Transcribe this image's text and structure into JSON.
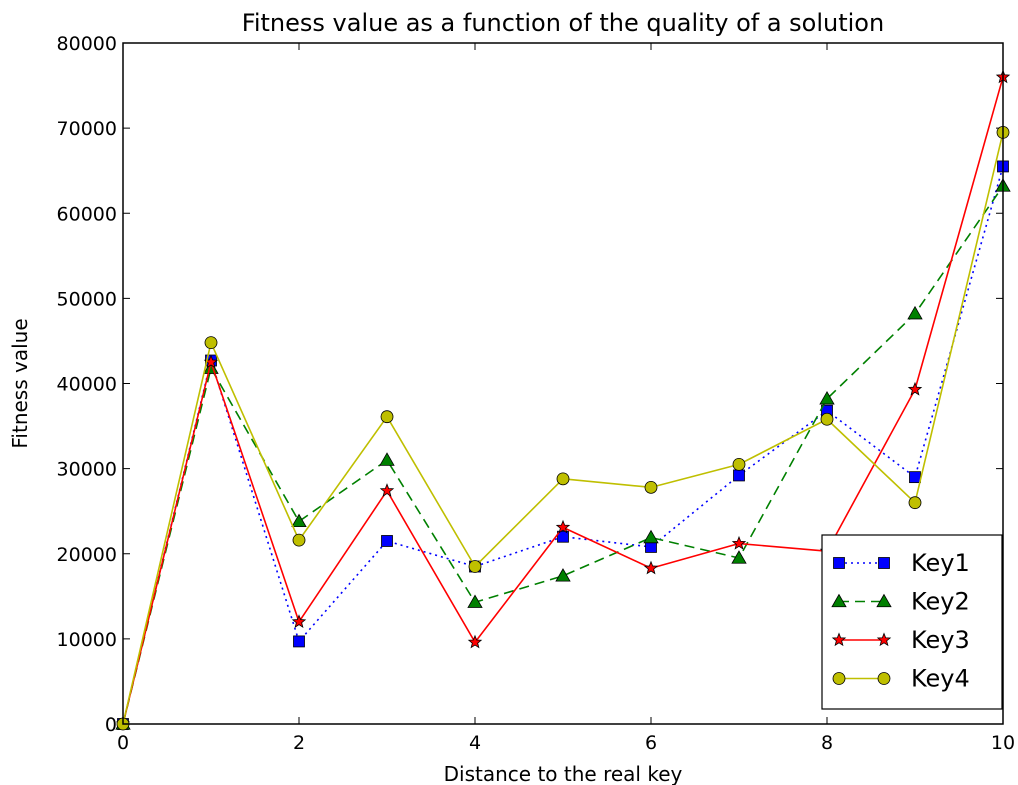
{
  "chart_data": {
    "type": "line",
    "title": "Fitness value as a function of the quality of a solution",
    "xlabel": "Distance to the real key",
    "ylabel": "Fitness value",
    "xlim": [
      0,
      10
    ],
    "ylim": [
      0,
      80000
    ],
    "xticks": [
      0,
      2,
      4,
      6,
      8,
      10
    ],
    "yticks": [
      0,
      10000,
      20000,
      30000,
      40000,
      50000,
      60000,
      70000,
      80000
    ],
    "grid": false,
    "legend_position": "lower-right",
    "x": [
      0,
      1,
      2,
      3,
      4,
      5,
      6,
      7,
      8,
      9,
      10
    ],
    "series": [
      {
        "name": "Key1",
        "color": "#0000ff",
        "line_style": "dotted",
        "marker": "square",
        "values": [
          0,
          42700,
          9700,
          21500,
          18500,
          22000,
          20800,
          29200,
          36800,
          29000,
          65500
        ]
      },
      {
        "name": "Key2",
        "color": "#008000",
        "line_style": "dashed",
        "marker": "triangle",
        "values": [
          0,
          41800,
          23800,
          31000,
          14300,
          17400,
          21900,
          19500,
          38200,
          48200,
          63200
        ]
      },
      {
        "name": "Key3",
        "color": "#ff0000",
        "line_style": "solid",
        "marker": "star",
        "values": [
          0,
          42500,
          12000,
          27400,
          9600,
          23100,
          18300,
          21200,
          20300,
          39300,
          76000
        ]
      },
      {
        "name": "Key4",
        "color": "#bfbf00",
        "line_style": "solid",
        "marker": "circle",
        "values": [
          0,
          44800,
          21600,
          36100,
          18500,
          28800,
          27800,
          30500,
          35800,
          26000,
          69500
        ]
      }
    ]
  }
}
